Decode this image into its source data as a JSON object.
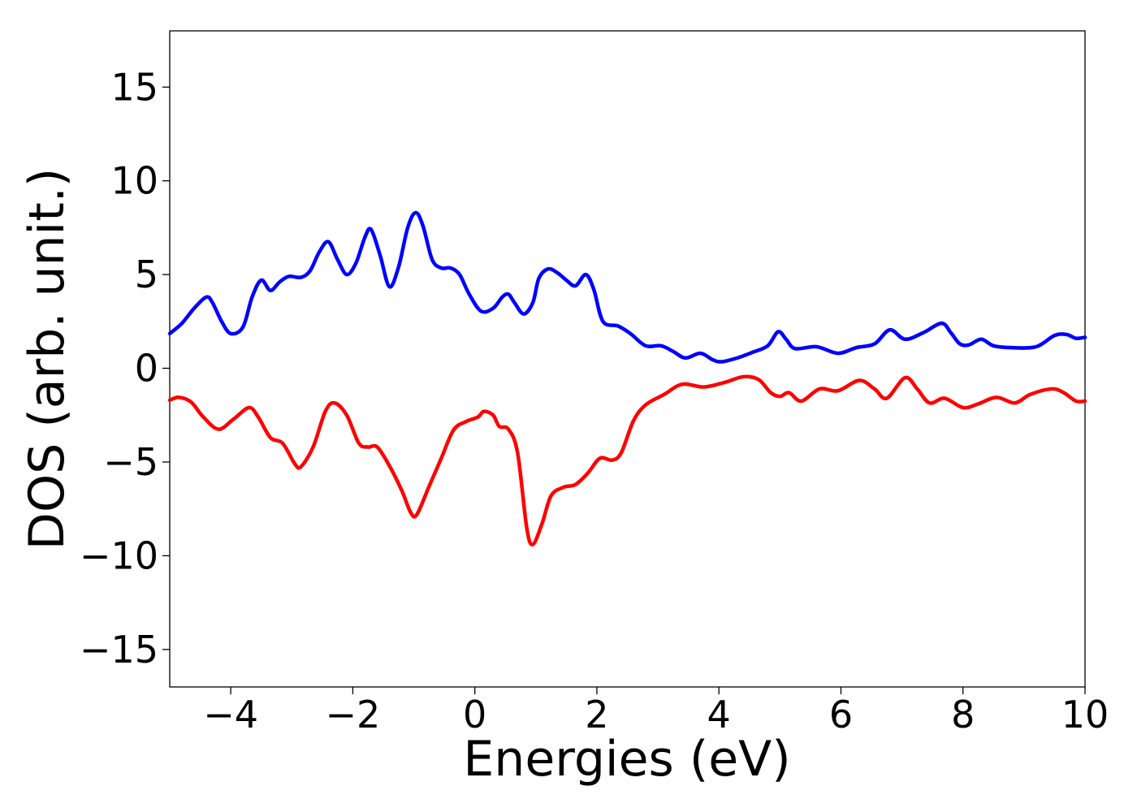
{
  "chart_data": {
    "type": "line",
    "title": "",
    "xlabel": "Energies (eV)",
    "ylabel": "DOS (arb. unit.)",
    "xlim": [
      -5,
      10
    ],
    "ylim": [
      -17,
      18
    ],
    "grid": false,
    "legend": "none",
    "x_ticks": [
      {
        "value": -4,
        "label": "−4"
      },
      {
        "value": -2,
        "label": "−2"
      },
      {
        "value": 0,
        "label": "0"
      },
      {
        "value": 2,
        "label": "2"
      },
      {
        "value": 4,
        "label": "4"
      },
      {
        "value": 6,
        "label": "6"
      },
      {
        "value": 8,
        "label": "8"
      },
      {
        "value": 10,
        "label": "10"
      }
    ],
    "y_ticks": [
      {
        "value": 15,
        "label": "15"
      },
      {
        "value": 10,
        "label": "10"
      },
      {
        "value": 5,
        "label": "5"
      },
      {
        "value": 0,
        "label": "0"
      },
      {
        "value": -5,
        "label": "−5"
      },
      {
        "value": -10,
        "label": "−10"
      },
      {
        "value": -15,
        "label": "−15"
      }
    ],
    "series": [
      {
        "color": "#0000ff",
        "points": [
          [
            -5.0,
            1.85
          ],
          [
            -4.8,
            2.4
          ],
          [
            -4.6,
            3.2
          ],
          [
            -4.4,
            3.8
          ],
          [
            -4.3,
            3.5
          ],
          [
            -4.15,
            2.5
          ],
          [
            -4.0,
            1.85
          ],
          [
            -3.8,
            2.2
          ],
          [
            -3.65,
            3.8
          ],
          [
            -3.5,
            4.7
          ],
          [
            -3.35,
            4.15
          ],
          [
            -3.2,
            4.6
          ],
          [
            -3.05,
            4.9
          ],
          [
            -2.85,
            4.85
          ],
          [
            -2.7,
            5.2
          ],
          [
            -2.55,
            6.2
          ],
          [
            -2.4,
            6.75
          ],
          [
            -2.25,
            5.8
          ],
          [
            -2.1,
            5.0
          ],
          [
            -1.95,
            5.6
          ],
          [
            -1.8,
            7.0
          ],
          [
            -1.7,
            7.4
          ],
          [
            -1.55,
            6.0
          ],
          [
            -1.4,
            4.35
          ],
          [
            -1.25,
            5.4
          ],
          [
            -1.1,
            7.5
          ],
          [
            -0.97,
            8.3
          ],
          [
            -0.85,
            7.6
          ],
          [
            -0.7,
            5.8
          ],
          [
            -0.55,
            5.35
          ],
          [
            -0.4,
            5.35
          ],
          [
            -0.25,
            5.0
          ],
          [
            -0.1,
            4.0
          ],
          [
            0.1,
            3.05
          ],
          [
            0.3,
            3.2
          ],
          [
            0.45,
            3.8
          ],
          [
            0.55,
            3.95
          ],
          [
            0.65,
            3.5
          ],
          [
            0.8,
            2.9
          ],
          [
            0.95,
            3.5
          ],
          [
            1.05,
            4.8
          ],
          [
            1.2,
            5.3
          ],
          [
            1.35,
            5.1
          ],
          [
            1.5,
            4.7
          ],
          [
            1.65,
            4.4
          ],
          [
            1.82,
            5.0
          ],
          [
            1.95,
            4.2
          ],
          [
            2.1,
            2.5
          ],
          [
            2.35,
            2.25
          ],
          [
            2.55,
            1.85
          ],
          [
            2.8,
            1.2
          ],
          [
            3.05,
            1.2
          ],
          [
            3.25,
            0.9
          ],
          [
            3.45,
            0.55
          ],
          [
            3.7,
            0.8
          ],
          [
            3.9,
            0.45
          ],
          [
            4.05,
            0.35
          ],
          [
            4.3,
            0.55
          ],
          [
            4.55,
            0.85
          ],
          [
            4.8,
            1.2
          ],
          [
            4.97,
            1.95
          ],
          [
            5.1,
            1.55
          ],
          [
            5.25,
            1.05
          ],
          [
            5.6,
            1.15
          ],
          [
            5.95,
            0.8
          ],
          [
            6.25,
            1.1
          ],
          [
            6.55,
            1.3
          ],
          [
            6.8,
            2.05
          ],
          [
            7.05,
            1.55
          ],
          [
            7.35,
            1.9
          ],
          [
            7.65,
            2.4
          ],
          [
            7.8,
            1.9
          ],
          [
            7.95,
            1.3
          ],
          [
            8.1,
            1.25
          ],
          [
            8.3,
            1.55
          ],
          [
            8.5,
            1.2
          ],
          [
            8.8,
            1.1
          ],
          [
            9.2,
            1.15
          ],
          [
            9.5,
            1.75
          ],
          [
            9.7,
            1.8
          ],
          [
            9.85,
            1.6
          ],
          [
            10.0,
            1.65
          ]
        ]
      },
      {
        "color": "#ff0000",
        "points": [
          [
            -5.0,
            -1.7
          ],
          [
            -4.85,
            -1.55
          ],
          [
            -4.65,
            -1.8
          ],
          [
            -4.45,
            -2.6
          ],
          [
            -4.2,
            -3.25
          ],
          [
            -3.95,
            -2.7
          ],
          [
            -3.7,
            -2.1
          ],
          [
            -3.55,
            -2.6
          ],
          [
            -3.35,
            -3.7
          ],
          [
            -3.15,
            -4.0
          ],
          [
            -2.95,
            -5.1
          ],
          [
            -2.85,
            -5.25
          ],
          [
            -2.65,
            -4.2
          ],
          [
            -2.45,
            -2.3
          ],
          [
            -2.3,
            -1.85
          ],
          [
            -2.1,
            -2.5
          ],
          [
            -1.9,
            -4.0
          ],
          [
            -1.75,
            -4.2
          ],
          [
            -1.6,
            -4.2
          ],
          [
            -1.4,
            -5.2
          ],
          [
            -1.2,
            -6.5
          ],
          [
            -1.05,
            -7.7
          ],
          [
            -0.95,
            -7.8
          ],
          [
            -0.75,
            -6.3
          ],
          [
            -0.55,
            -4.8
          ],
          [
            -0.35,
            -3.3
          ],
          [
            -0.15,
            -2.85
          ],
          [
            0.05,
            -2.6
          ],
          [
            0.15,
            -2.3
          ],
          [
            0.3,
            -2.5
          ],
          [
            0.4,
            -3.1
          ],
          [
            0.55,
            -3.25
          ],
          [
            0.7,
            -4.5
          ],
          [
            0.85,
            -8.5
          ],
          [
            0.95,
            -9.4
          ],
          [
            1.1,
            -8.3
          ],
          [
            1.25,
            -6.8
          ],
          [
            1.45,
            -6.35
          ],
          [
            1.65,
            -6.2
          ],
          [
            1.85,
            -5.6
          ],
          [
            2.05,
            -4.8
          ],
          [
            2.25,
            -4.9
          ],
          [
            2.4,
            -4.5
          ],
          [
            2.6,
            -2.8
          ],
          [
            2.8,
            -1.95
          ],
          [
            3.1,
            -1.4
          ],
          [
            3.4,
            -0.85
          ],
          [
            3.75,
            -1.0
          ],
          [
            4.1,
            -0.75
          ],
          [
            4.4,
            -0.45
          ],
          [
            4.65,
            -0.6
          ],
          [
            4.85,
            -1.3
          ],
          [
            5.0,
            -1.5
          ],
          [
            5.15,
            -1.3
          ],
          [
            5.35,
            -1.75
          ],
          [
            5.65,
            -1.1
          ],
          [
            5.95,
            -1.2
          ],
          [
            6.3,
            -0.65
          ],
          [
            6.55,
            -1.1
          ],
          [
            6.75,
            -1.6
          ],
          [
            7.05,
            -0.5
          ],
          [
            7.25,
            -1.1
          ],
          [
            7.45,
            -1.85
          ],
          [
            7.7,
            -1.6
          ],
          [
            8.0,
            -2.1
          ],
          [
            8.25,
            -1.9
          ],
          [
            8.55,
            -1.55
          ],
          [
            8.85,
            -1.85
          ],
          [
            9.1,
            -1.4
          ],
          [
            9.45,
            -1.1
          ],
          [
            9.65,
            -1.3
          ],
          [
            9.85,
            -1.75
          ],
          [
            10.0,
            -1.75
          ]
        ]
      }
    ]
  }
}
